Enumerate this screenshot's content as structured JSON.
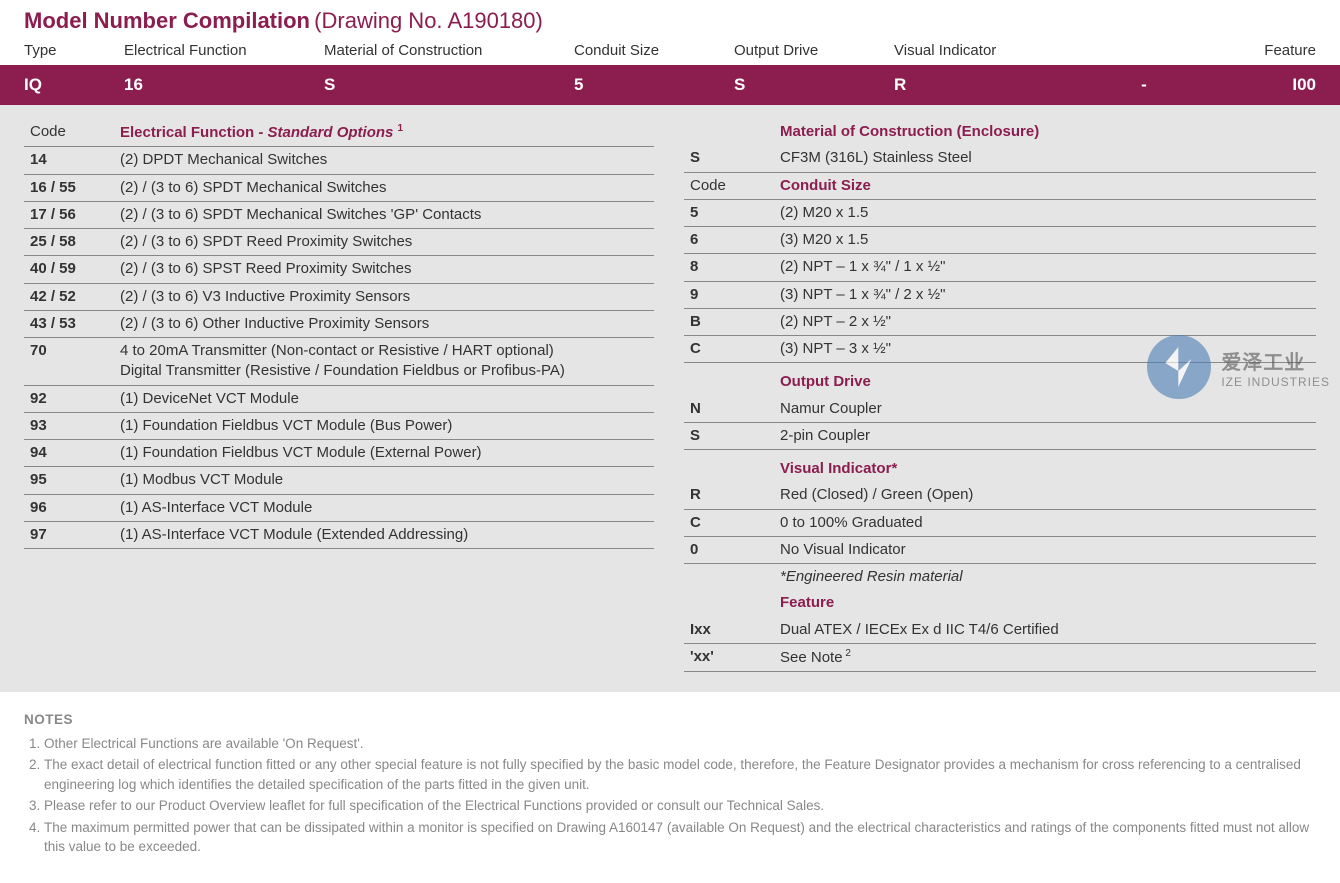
{
  "colors": {
    "brand": "#8c1d4f",
    "panel_bg": "#e5e5e5",
    "text": "#333333",
    "muted": "#888888",
    "rule": "#888888",
    "white": "#ffffff",
    "watermark_circle": "#4a7db5"
  },
  "header": {
    "title": "Model Number Compilation",
    "subtitle": "(Drawing No. A190180)"
  },
  "column_labels": {
    "type": "Type",
    "electrical_function": "Electrical Function",
    "material": "Material of Construction",
    "conduit": "Conduit Size",
    "output": "Output Drive",
    "visual": "Visual Indicator",
    "feature": "Feature"
  },
  "band": {
    "type": "IQ",
    "electrical_function": "16",
    "material": "S",
    "conduit": "5",
    "output": "S",
    "visual": "R",
    "dash": "-",
    "feature": "I00"
  },
  "left": {
    "code_label": "Code",
    "section_title": "Electrical Function",
    "section_sub": " - Standard Options",
    "section_sup": "1",
    "rows": [
      {
        "code": "14",
        "desc": "(2) DPDT Mechanical Switches"
      },
      {
        "code": "16 / 55",
        "desc": "(2) / (3 to 6) SPDT Mechanical Switches"
      },
      {
        "code": "17 / 56",
        "desc": "(2) / (3 to 6) SPDT Mechanical Switches 'GP' Contacts"
      },
      {
        "code": "25 / 58",
        "desc": "(2) / (3 to 6) SPDT Reed Proximity Switches"
      },
      {
        "code": "40 / 59",
        "desc": "(2) / (3 to 6) SPST Reed Proximity Switches"
      },
      {
        "code": "42 / 52",
        "desc": "(2) / (3 to 6) V3 Inductive Proximity Sensors"
      },
      {
        "code": "43 / 53",
        "desc": "(2) / (3 to 6) Other Inductive Proximity Sensors"
      },
      {
        "code": "70",
        "desc": "4 to 20mA Transmitter (Non-contact or Resistive / HART optional)\nDigital Transmitter (Resistive / Foundation Fieldbus or Profibus-PA)"
      },
      {
        "code": "92",
        "desc": "(1) DeviceNet VCT Module"
      },
      {
        "code": "93",
        "desc": "(1) Foundation Fieldbus VCT Module (Bus Power)"
      },
      {
        "code": "94",
        "desc": "(1) Foundation Fieldbus VCT Module (External Power)"
      },
      {
        "code": "95",
        "desc": "(1) Modbus VCT Module"
      },
      {
        "code": "96",
        "desc": "(1) AS-Interface VCT Module"
      },
      {
        "code": "97",
        "desc": "(1) AS-Interface VCT Module (Extended Addressing)"
      }
    ]
  },
  "right": {
    "material": {
      "title": "Material of Construction (Enclosure)",
      "rows": [
        {
          "code": "S",
          "desc": "CF3M (316L) Stainless Steel"
        }
      ]
    },
    "conduit": {
      "code_label": "Code",
      "title": "Conduit Size",
      "rows": [
        {
          "code": "5",
          "desc": "(2) M20 x 1.5"
        },
        {
          "code": "6",
          "desc": "(3) M20 x 1.5"
        },
        {
          "code": "8",
          "desc": "(2) NPT – 1 x ¾\" / 1 x ½\""
        },
        {
          "code": "9",
          "desc": "(3) NPT – 1 x ¾\" / 2 x ½\""
        },
        {
          "code": "B",
          "desc": "(2) NPT – 2 x ½\""
        },
        {
          "code": "C",
          "desc": "(3) NPT – 3 x ½\""
        }
      ]
    },
    "output": {
      "title": "Output Drive",
      "rows": [
        {
          "code": "N",
          "desc": "Namur Coupler"
        },
        {
          "code": "S",
          "desc": "2-pin Coupler"
        }
      ]
    },
    "visual": {
      "title": "Visual Indicator",
      "asterisk": "*",
      "rows": [
        {
          "code": "R",
          "desc": "Red (Closed) / Green (Open)"
        },
        {
          "code": "C",
          "desc": "0 to 100% Graduated"
        },
        {
          "code": "0",
          "desc": "No Visual Indicator"
        }
      ],
      "note": "*Engineered Resin material"
    },
    "feature": {
      "title": "Feature",
      "rows": [
        {
          "code": "Ixx",
          "desc": "Dual ATEX / IECEx Ex d IIC T4/6 Certified"
        },
        {
          "code": "'xx'",
          "desc": "See Note",
          "sup": "2"
        }
      ]
    }
  },
  "watermark": {
    "cn": "爱泽工业",
    "en": "IZE INDUSTRIES"
  },
  "notes": {
    "title": "NOTES",
    "items": [
      "Other Electrical Functions are available 'On Request'.",
      "The exact detail of electrical function fitted or any other special feature is not fully specified by the basic model code, therefore, the Feature Designator provides a mechanism for cross referencing to a centralised engineering log which identifies the detailed specification of the parts fitted in the given unit.",
      "Please refer to our Product Overview leaflet for full specification of the Electrical Functions provided or consult our Technical Sales.",
      "The maximum permitted power that can be dissipated within a monitor is specified on Drawing A160147 (available On Request) and the electrical characteristics and ratings of the components fitted must not allow this value to be exceeded."
    ]
  }
}
